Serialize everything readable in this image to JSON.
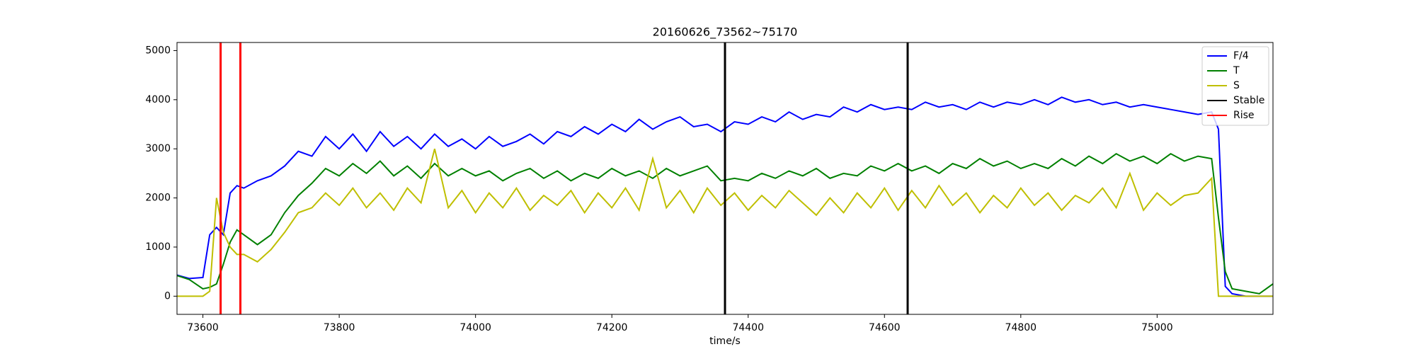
{
  "chart_data": {
    "type": "line",
    "title": "20160626_73562~75170",
    "x_label": "time/s",
    "x": [
      73562,
      73580,
      73600,
      73610,
      73620,
      73630,
      73640,
      73650,
      73660,
      73680,
      73700,
      73720,
      73740,
      73760,
      73780,
      73800,
      73820,
      73840,
      73860,
      73880,
      73900,
      73920,
      73940,
      73960,
      73980,
      74000,
      74020,
      74040,
      74060,
      74080,
      74100,
      74120,
      74140,
      74160,
      74180,
      74200,
      74220,
      74240,
      74260,
      74280,
      74300,
      74320,
      74340,
      74360,
      74380,
      74400,
      74420,
      74440,
      74460,
      74480,
      74500,
      74520,
      74540,
      74560,
      74580,
      74600,
      74620,
      74640,
      74660,
      74680,
      74700,
      74720,
      74740,
      74760,
      74780,
      74800,
      74820,
      74840,
      74860,
      74880,
      74900,
      74920,
      74940,
      74960,
      74980,
      75000,
      75020,
      75040,
      75060,
      75080,
      75090,
      75100,
      75110,
      75130,
      75150,
      75170
    ],
    "series": [
      {
        "name": "F/4",
        "color": "#0000ff",
        "values": [
          430,
          360,
          380,
          1250,
          1400,
          1250,
          2100,
          2250,
          2200,
          2350,
          2450,
          2650,
          2950,
          2850,
          3250,
          3000,
          3300,
          2950,
          3350,
          3050,
          3250,
          3000,
          3300,
          3050,
          3200,
          3000,
          3250,
          3050,
          3150,
          3300,
          3100,
          3350,
          3250,
          3450,
          3300,
          3500,
          3350,
          3600,
          3400,
          3550,
          3650,
          3450,
          3500,
          3350,
          3550,
          3500,
          3650,
          3550,
          3750,
          3600,
          3700,
          3650,
          3850,
          3750,
          3900,
          3800,
          3850,
          3800,
          3950,
          3850,
          3900,
          3800,
          3950,
          3850,
          3950,
          3900,
          4000,
          3900,
          4050,
          3950,
          4000,
          3900,
          3950,
          3850,
          3900,
          3850,
          3800,
          3750,
          3700,
          3750,
          3400,
          200,
          50,
          0,
          0,
          0
        ]
      },
      {
        "name": "T",
        "color": "#008000",
        "values": [
          420,
          340,
          150,
          180,
          250,
          650,
          1100,
          1350,
          1250,
          1050,
          1250,
          1700,
          2050,
          2300,
          2600,
          2450,
          2700,
          2500,
          2750,
          2450,
          2650,
          2400,
          2700,
          2450,
          2600,
          2450,
          2550,
          2350,
          2500,
          2600,
          2400,
          2550,
          2350,
          2500,
          2400,
          2600,
          2450,
          2550,
          2400,
          2600,
          2450,
          2550,
          2650,
          2350,
          2400,
          2350,
          2500,
          2400,
          2550,
          2450,
          2600,
          2400,
          2500,
          2450,
          2650,
          2550,
          2700,
          2550,
          2650,
          2500,
          2700,
          2600,
          2800,
          2650,
          2750,
          2600,
          2700,
          2600,
          2800,
          2650,
          2850,
          2700,
          2900,
          2750,
          2850,
          2700,
          2900,
          2750,
          2850,
          2800,
          1600,
          500,
          150,
          100,
          50,
          250
        ]
      },
      {
        "name": "S",
        "color": "#bfbf00",
        "values": [
          0,
          0,
          0,
          100,
          2000,
          1300,
          1000,
          850,
          850,
          700,
          950,
          1300,
          1700,
          1800,
          2100,
          1850,
          2200,
          1800,
          2100,
          1750,
          2200,
          1900,
          3000,
          1800,
          2150,
          1700,
          2100,
          1800,
          2200,
          1750,
          2050,
          1850,
          2150,
          1700,
          2100,
          1800,
          2200,
          1750,
          2800,
          1800,
          2150,
          1700,
          2200,
          1850,
          2100,
          1750,
          2050,
          1800,
          2150,
          1900,
          1650,
          2000,
          1700,
          2100,
          1800,
          2200,
          1750,
          2150,
          1800,
          2250,
          1850,
          2100,
          1700,
          2050,
          1800,
          2200,
          1850,
          2100,
          1750,
          2050,
          1900,
          2200,
          1800,
          2500,
          1750,
          2100,
          1850,
          2050,
          2100,
          2400,
          0,
          0,
          0,
          0,
          0,
          0
        ]
      }
    ],
    "vlines": [
      {
        "name": "Stable",
        "color": "#000000",
        "x": [
          74366,
          74634
        ]
      },
      {
        "name": "Rise",
        "color": "#ff0000",
        "x": [
          73626,
          73655
        ]
      }
    ],
    "xlim": [
      73562,
      75170
    ],
    "ylim": [
      -370,
      5165
    ],
    "xticks": [
      73600,
      73800,
      74000,
      74200,
      74400,
      74600,
      74800,
      75000
    ],
    "yticks": [
      0,
      1000,
      2000,
      3000,
      4000,
      5000
    ],
    "grid": false,
    "legend": "upper right"
  }
}
